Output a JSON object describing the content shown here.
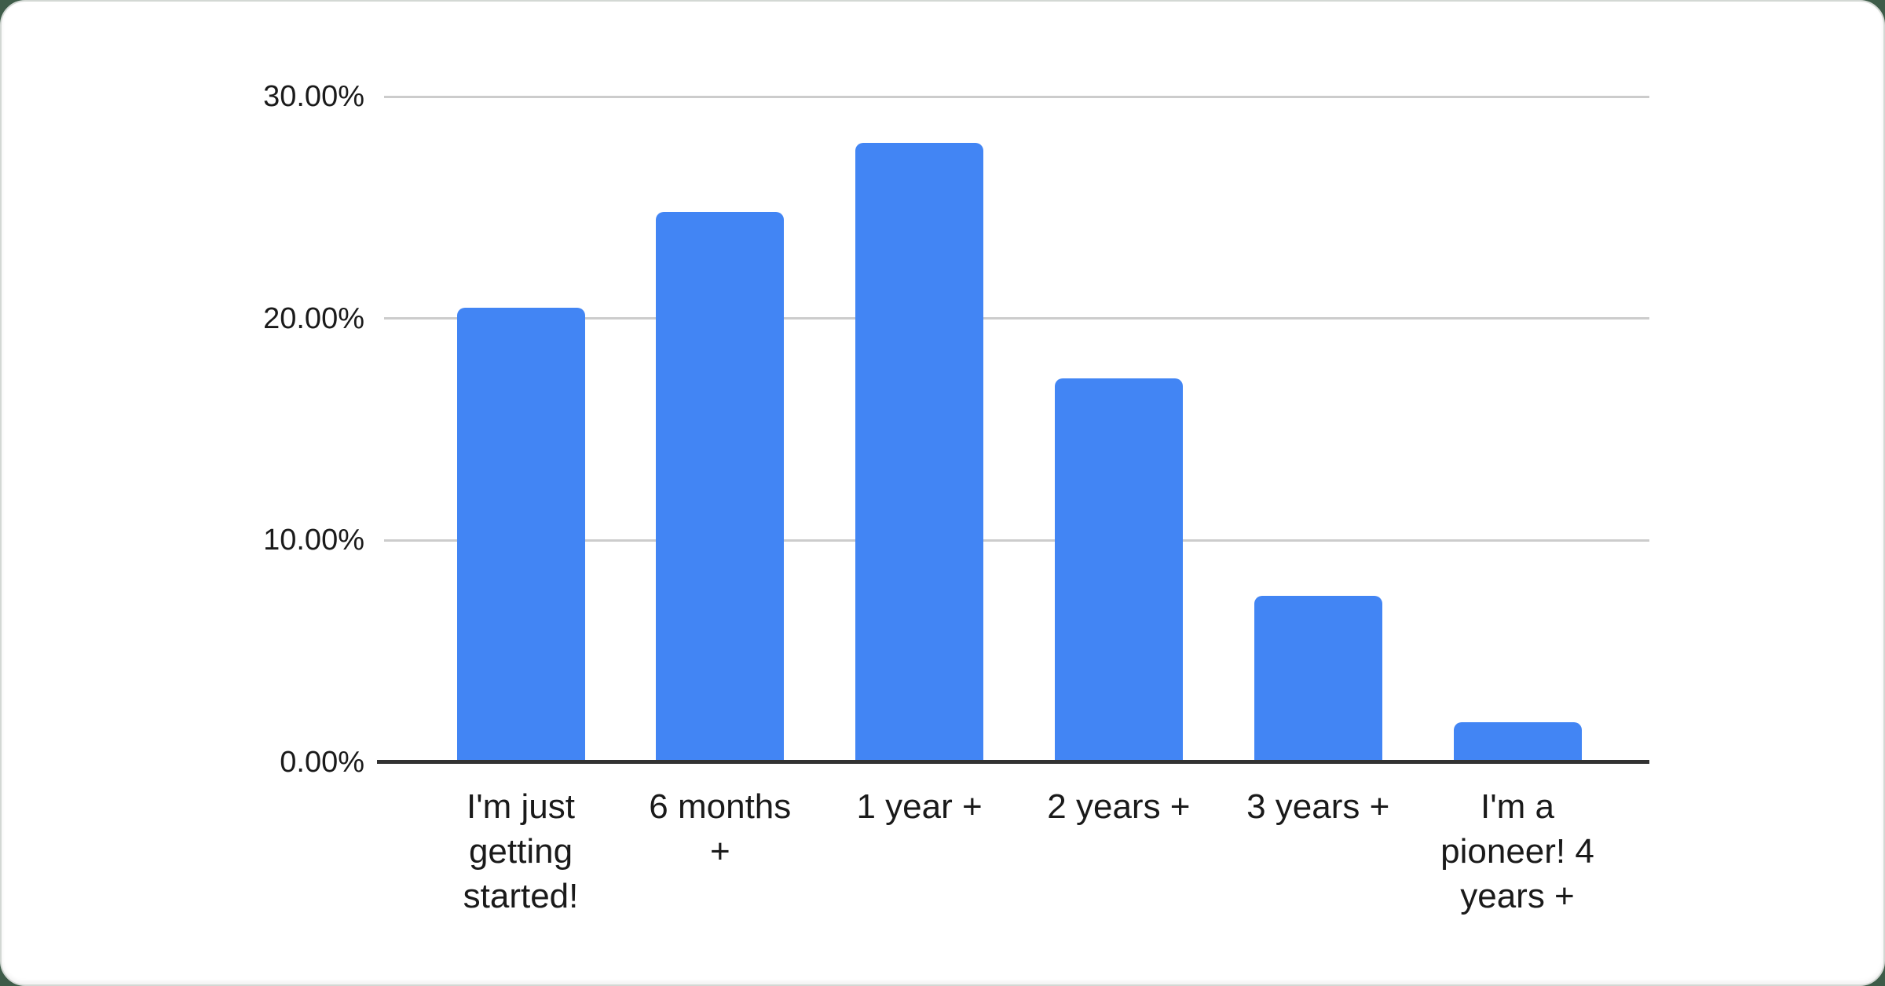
{
  "page": {
    "background_color": "#3e5c49",
    "card_color": "#ffffff"
  },
  "chart_data": {
    "type": "bar",
    "title": "",
    "xlabel": "",
    "ylabel": "",
    "categories": [
      "I'm just getting started!",
      "6 months +",
      "1 year +",
      "2 years +",
      "3 years +",
      "I'm a pioneer! 4 years +"
    ],
    "values": [
      20.5,
      24.8,
      27.9,
      17.3,
      7.5,
      1.8
    ],
    "value_unit": "%",
    "ylim": [
      0,
      30
    ],
    "y_ticks": [
      0,
      10,
      20,
      30
    ],
    "y_tick_labels": [
      "0.00%",
      "10.00%",
      "20.00%",
      "30.00%"
    ],
    "grid": true,
    "legend": "none",
    "bar_color": "#4285f4",
    "gridline_color": "#cccccc",
    "axis_line_color": "#323232",
    "label_color": "#1a1a1a"
  }
}
